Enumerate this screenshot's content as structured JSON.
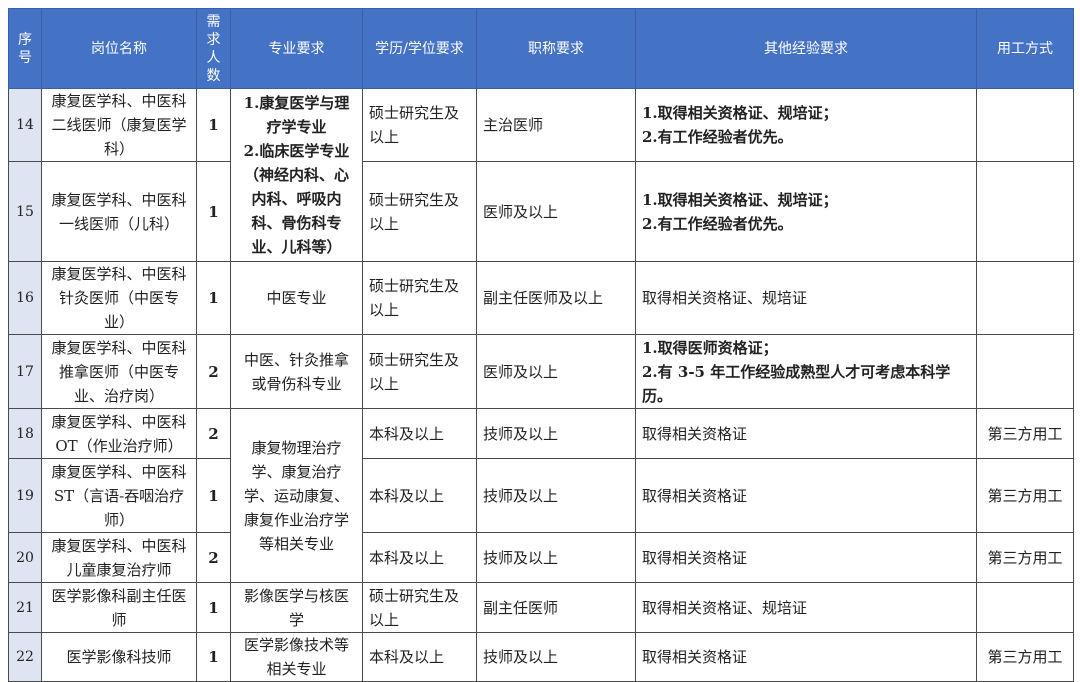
{
  "header": {
    "seq": "序号",
    "position": "岗位名称",
    "count": "需求人数",
    "major": "专业要求",
    "education": "学历/学位要求",
    "title": "职称要求",
    "experience": "其他经验要求",
    "employment": "用工方式"
  },
  "rows": [
    {
      "seq": "14",
      "position": "康复医学科、中医科二线医师（康复医学科）",
      "count": "1",
      "education": "硕士研究生及以上",
      "title": "主治医师",
      "experience": [
        "1.取得相关资格证、规培证；",
        "2.有工作经验者优先。"
      ],
      "employment": ""
    },
    {
      "seq": "15",
      "position": "康复医学科、中医科一线医师（儿科）",
      "count": "1",
      "education": "硕士研究生及以上",
      "title": "医师及以上",
      "experience": [
        "1.取得相关资格证、规培证；",
        "2.有工作经验者优先。"
      ],
      "employment": ""
    },
    {
      "seq": "16",
      "position": "康复医学科、中医科针灸医师（中医专业）",
      "count": "1",
      "major": "中医专业",
      "education": "硕士研究生及以上",
      "title": "副主任医师及以上",
      "experience": [
        "取得相关资格证、规培证"
      ],
      "employment": ""
    },
    {
      "seq": "17",
      "position": "康复医学科、中医科推拿医师（中医专业、治疗岗）",
      "count": "2",
      "major": "中医、针灸推拿或骨伤科专业",
      "education": "硕士研究生及以上",
      "title": "医师及以上",
      "experience": [
        "1.取得医师资格证；",
        "2.有 3-5 年工作经验成熟型人才可考虑本科学历。"
      ],
      "employment": ""
    },
    {
      "seq": "18",
      "position": "康复医学科、中医科OT（作业治疗师）",
      "count": "2",
      "education": "本科及以上",
      "title": "技师及以上",
      "experience": [
        "取得相关资格证"
      ],
      "employment": "第三方用工"
    },
    {
      "seq": "19",
      "position": "康复医学科、中医科ST（言语-吞咽治疗师）",
      "count": "1",
      "education": "本科及以上",
      "title": "技师及以上",
      "experience": [
        "取得相关资格证"
      ],
      "employment": "第三方用工"
    },
    {
      "seq": "20",
      "position": "康复医学科、中医科儿童康复治疗师",
      "count": "2",
      "education": "本科及以上",
      "title": "技师及以上",
      "experience": [
        "取得相关资格证"
      ],
      "employment": "第三方用工"
    },
    {
      "seq": "21",
      "position": "医学影像科副主任医师",
      "count": "1",
      "major": "影像医学与核医学",
      "education": "硕士研究生及以上",
      "title": "副主任医师",
      "experience": [
        "取得相关资格证、规培证"
      ],
      "employment": ""
    },
    {
      "seq": "22",
      "position": "医学影像科技师",
      "count": "1",
      "major": "医学影像技术等相关专业",
      "education": "本科及以上",
      "title": "技师及以上",
      "experience": [
        "取得相关资格证"
      ],
      "employment": "第三方用工"
    }
  ],
  "merged_majors": {
    "rows_14_15": [
      "1.康复医学与理疗学专业",
      "2.临床医学专业（神经内科、心内科、呼吸内科、骨伤科专业、儿科等）"
    ],
    "rows_18_20": "康复物理治疗学、康复治疗学、运动康复、康复作业治疗学等相关专业"
  },
  "colors": {
    "header_bg": "#4472c4",
    "seq_bg": "#dfe4f3"
  }
}
